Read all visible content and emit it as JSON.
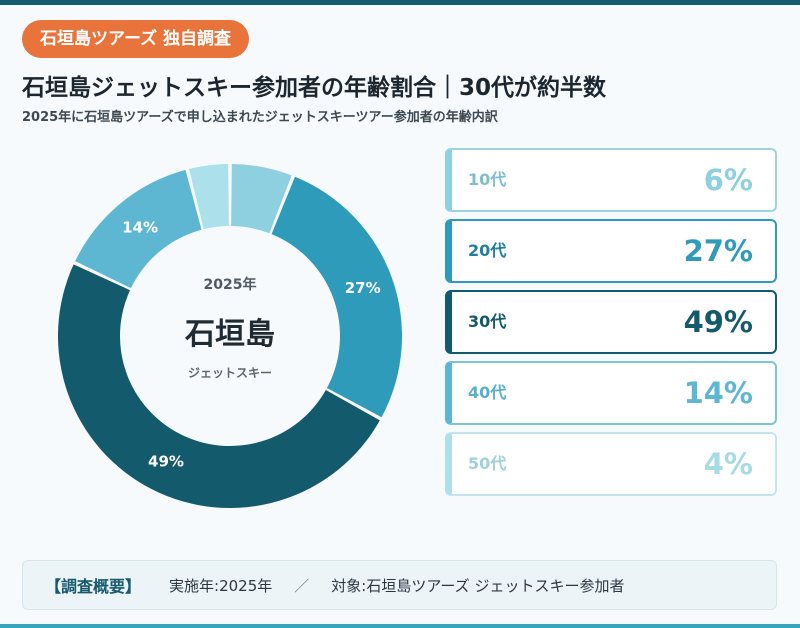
{
  "badge": "石垣島ツアーズ 独自調査",
  "title": "石垣島ジェットスキー参加者の年齢割合｜30代が約半数",
  "subtitle": "2025年に石垣島ツアーズで申し込まれたジェットスキーツアー参加者の年齢内訳",
  "center": {
    "year": "2025年",
    "name": "石垣島",
    "sub": "ジェットスキー"
  },
  "chart_data": {
    "type": "pie",
    "categories": [
      "10代",
      "20代",
      "30代",
      "40代",
      "50代"
    ],
    "values": [
      6,
      27,
      49,
      14,
      4
    ],
    "value_labels": [
      "6%",
      "27%",
      "49%",
      "14%",
      "4%"
    ],
    "colors": [
      "#8ecfe0",
      "#2f9bbb",
      "#135a6c",
      "#5eb7d2",
      "#ace0ea"
    ],
    "slice_labels_shown": [
      "",
      "27%",
      "49%",
      "14%",
      ""
    ],
    "style": "donut",
    "start": "top, clockwise"
  },
  "cards": [
    {
      "age": "10代",
      "pct": "6%",
      "border": "#9fd3e0",
      "accent": "#8ecfe0",
      "age_color": "#7fbdcf",
      "pct_color": "#8ecfe0"
    },
    {
      "age": "20代",
      "pct": "27%",
      "border": "#2f9bbb",
      "accent": "#2f9bbb",
      "age_color": "#1f7f9c",
      "pct_color": "#2f9bbb"
    },
    {
      "age": "30代",
      "pct": "49%",
      "border": "#135a6c",
      "accent": "#135a6c",
      "age_color": "#135a6c",
      "pct_color": "#135a6c"
    },
    {
      "age": "40代",
      "pct": "14%",
      "border": "#7cc4d8",
      "accent": "#5eb7d2",
      "age_color": "#5ab0c9",
      "pct_color": "#5eb7d2"
    },
    {
      "age": "50代",
      "pct": "4%",
      "border": "#c2e6ee",
      "accent": "#ace0ea",
      "age_color": "#9fd0dc",
      "pct_color": "#a6dbe6"
    }
  ],
  "summary": {
    "label": "【調査概要】",
    "year": "実施年:2025年",
    "sep": "／",
    "target": "対象:石垣島ツアーズ ジェットスキー参加者"
  }
}
